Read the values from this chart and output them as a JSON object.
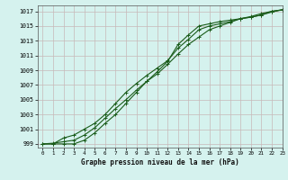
{
  "title": "Graphe pression niveau de la mer (hPa)",
  "bg_color": "#d5f2ee",
  "grid_color": "#c8b8b8",
  "line_color": "#1a5c1a",
  "xlim": [
    -0.5,
    23
  ],
  "ylim": [
    998.5,
    1017.8
  ],
  "xticks": [
    0,
    1,
    2,
    3,
    4,
    5,
    6,
    7,
    8,
    9,
    10,
    11,
    12,
    13,
    14,
    15,
    16,
    17,
    18,
    19,
    20,
    21,
    22,
    23
  ],
  "yticks": [
    999,
    1001,
    1003,
    1005,
    1007,
    1009,
    1011,
    1013,
    1015,
    1017
  ],
  "line1_x": [
    0,
    1,
    2,
    3,
    4,
    5,
    6,
    7,
    8,
    9,
    10,
    11,
    12,
    13,
    14,
    15,
    16,
    17,
    18,
    19,
    20,
    21,
    22,
    23
  ],
  "line1_y": [
    999.0,
    999.1,
    999.3,
    999.5,
    1000.2,
    1001.2,
    1002.5,
    1003.8,
    1005.0,
    1006.3,
    1007.5,
    1008.5,
    1009.8,
    1011.2,
    1012.5,
    1013.5,
    1014.5,
    1015.0,
    1015.5,
    1016.0,
    1016.2,
    1016.5,
    1016.9,
    1017.2
  ],
  "line2_x": [
    0,
    1,
    2,
    3,
    4,
    5,
    6,
    7,
    8,
    9,
    10,
    11,
    12,
    13,
    14,
    15,
    16,
    17,
    18,
    19,
    20,
    21,
    22,
    23
  ],
  "line2_y": [
    999.0,
    999.0,
    999.8,
    1000.2,
    1001.0,
    1001.8,
    1003.0,
    1004.5,
    1006.0,
    1007.2,
    1008.3,
    1009.3,
    1010.3,
    1012.0,
    1013.2,
    1014.5,
    1015.0,
    1015.3,
    1015.6,
    1016.0,
    1016.3,
    1016.7,
    1017.0,
    1017.2
  ],
  "line3_x": [
    0,
    1,
    2,
    3,
    4,
    5,
    6,
    7,
    8,
    9,
    10,
    11,
    12,
    13,
    14,
    15,
    16,
    17,
    18,
    19,
    20,
    21,
    22,
    23
  ],
  "line3_y": [
    999.0,
    999.0,
    999.0,
    999.0,
    999.5,
    1000.5,
    1001.8,
    1003.0,
    1004.5,
    1006.0,
    1007.5,
    1008.8,
    1010.2,
    1012.5,
    1013.8,
    1015.0,
    1015.3,
    1015.6,
    1015.8,
    1016.0,
    1016.2,
    1016.5,
    1017.0,
    1017.2
  ]
}
